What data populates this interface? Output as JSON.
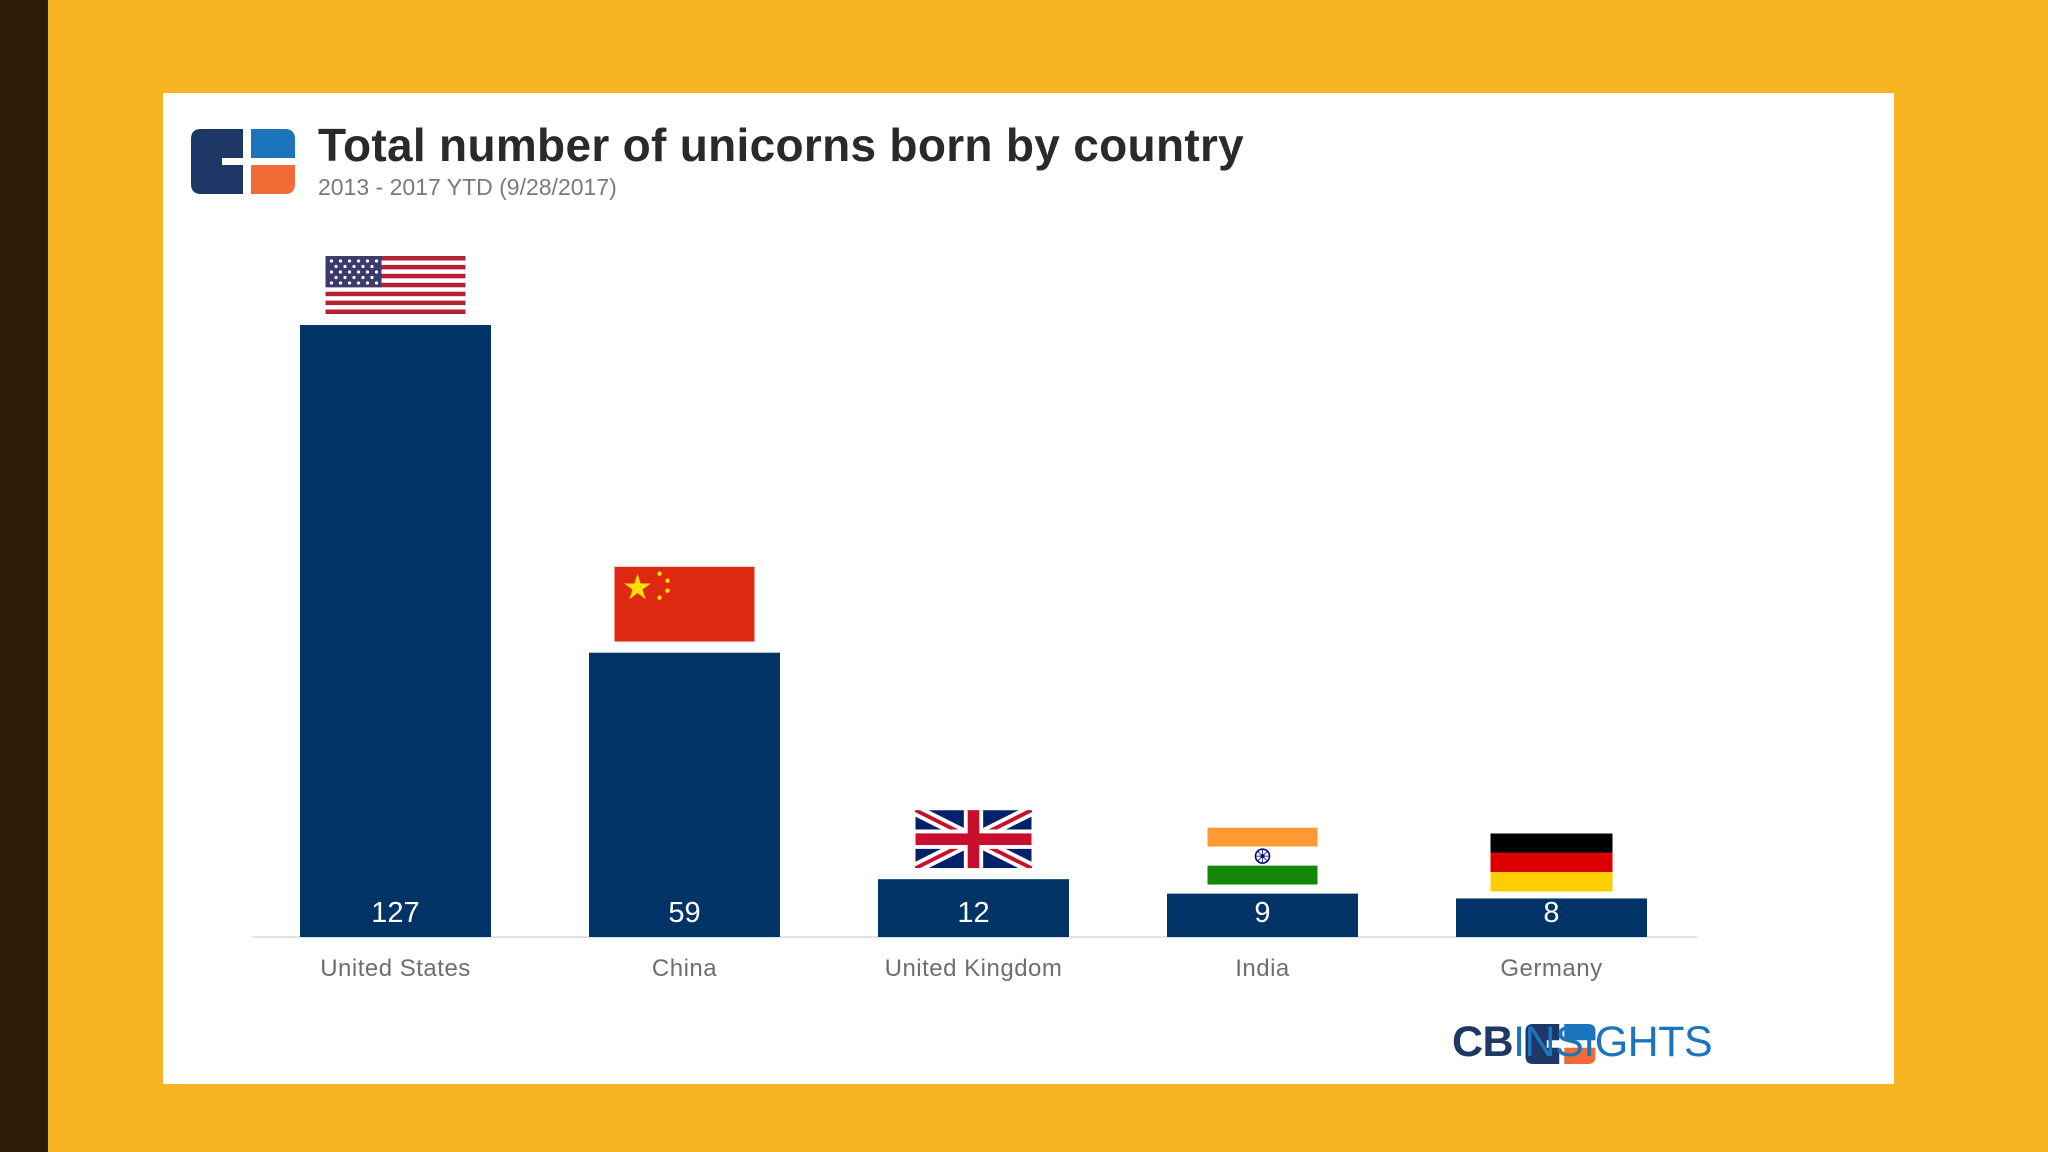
{
  "header": {
    "title": "Total number of unicorns born by country",
    "subtitle": "2013 - 2017 YTD (9/28/2017)"
  },
  "brand": {
    "cb": "CB",
    "insights": "INSIGHTS"
  },
  "colors": {
    "background": "#F7B523",
    "bar": "#003366",
    "logo_dark": "#1D3867",
    "logo_blue": "#1C75BC",
    "logo_orange": "#F26A36"
  },
  "icons": [
    "cb-insights-logo-icon",
    "us-flag-icon",
    "china-flag-icon",
    "uk-flag-icon",
    "india-flag-icon",
    "germany-flag-icon"
  ],
  "chart_data": {
    "type": "bar",
    "title": "Total number of unicorns born by country",
    "subtitle": "2013 - 2017 YTD (9/28/2017)",
    "categories": [
      "United States",
      "China",
      "United Kingdom",
      "India",
      "Germany"
    ],
    "values": [
      127,
      59,
      12,
      9,
      8
    ],
    "data_labels": [
      "127",
      "59",
      "12",
      "9",
      "8"
    ],
    "flags": [
      "us-flag-icon",
      "china-flag-icon",
      "uk-flag-icon",
      "india-flag-icon",
      "germany-flag-icon"
    ],
    "xlabel": "",
    "ylabel": "",
    "ylim": [
      0,
      127
    ],
    "grid": false,
    "legend": "none"
  }
}
